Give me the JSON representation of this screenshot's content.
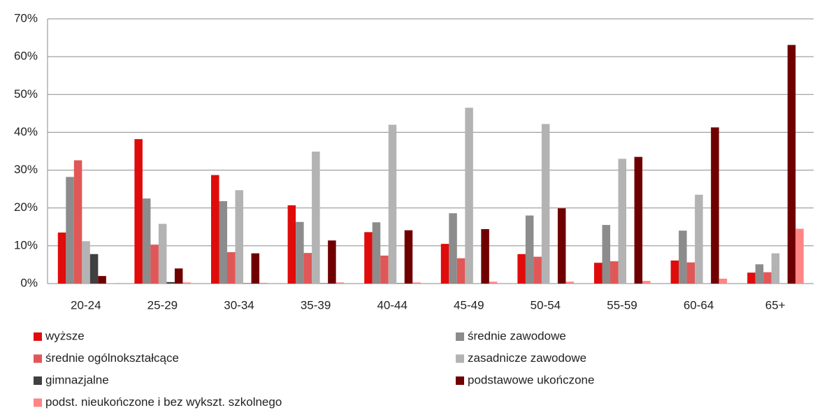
{
  "chart_data": {
    "type": "bar",
    "categories": [
      "20-24",
      "25-29",
      "30-34",
      "35-39",
      "40-44",
      "45-49",
      "50-54",
      "55-59",
      "60-64",
      "65+"
    ],
    "series": [
      {
        "name": "wyższe",
        "color": "#e00b0b",
        "values": [
          13.5,
          38.2,
          28.7,
          20.7,
          13.6,
          10.5,
          7.8,
          5.5,
          6.1,
          2.9
        ]
      },
      {
        "name": "średnie zawodowe",
        "color": "#8c8c8c",
        "values": [
          28.2,
          22.5,
          21.8,
          16.3,
          16.2,
          18.6,
          18.0,
          15.5,
          14.0,
          5.1
        ]
      },
      {
        "name": "średnie ogólnokształcące",
        "color": "#e15757",
        "values": [
          32.6,
          10.3,
          8.3,
          8.1,
          7.4,
          6.7,
          7.1,
          5.9,
          5.6,
          3.0
        ]
      },
      {
        "name": "zasadnicze zawodowe",
        "color": "#b3b3b3",
        "values": [
          11.2,
          15.8,
          24.7,
          34.9,
          42.0,
          46.5,
          42.2,
          33.0,
          23.5,
          8.0
        ]
      },
      {
        "name": "gimnazjalne",
        "color": "#404040",
        "values": [
          7.8,
          0.4,
          0.1,
          0.1,
          0.1,
          0,
          0,
          0,
          0,
          0
        ]
      },
      {
        "name": "podstawowe ukończone",
        "color": "#700000",
        "values": [
          2.0,
          4.0,
          8.0,
          11.4,
          14.1,
          14.4,
          19.9,
          33.5,
          41.3,
          63.1
        ]
      },
      {
        "name": "podst. nieukończone i bez wykszt. szkolnego",
        "color": "#ff8585",
        "values": [
          0.1,
          0.3,
          0.2,
          0.3,
          0.3,
          0.5,
          0.5,
          0.7,
          1.3,
          14.5
        ]
      }
    ],
    "ylim": [
      0,
      70
    ],
    "yticks": [
      {
        "value": 0,
        "label": "0%"
      },
      {
        "value": 10,
        "label": "10%"
      },
      {
        "value": 20,
        "label": "20%"
      },
      {
        "value": 30,
        "label": "30%"
      },
      {
        "value": 40,
        "label": "40%"
      },
      {
        "value": 50,
        "label": "50%"
      },
      {
        "value": 60,
        "label": "60%"
      },
      {
        "value": 70,
        "label": "70%"
      }
    ],
    "grid": true
  }
}
